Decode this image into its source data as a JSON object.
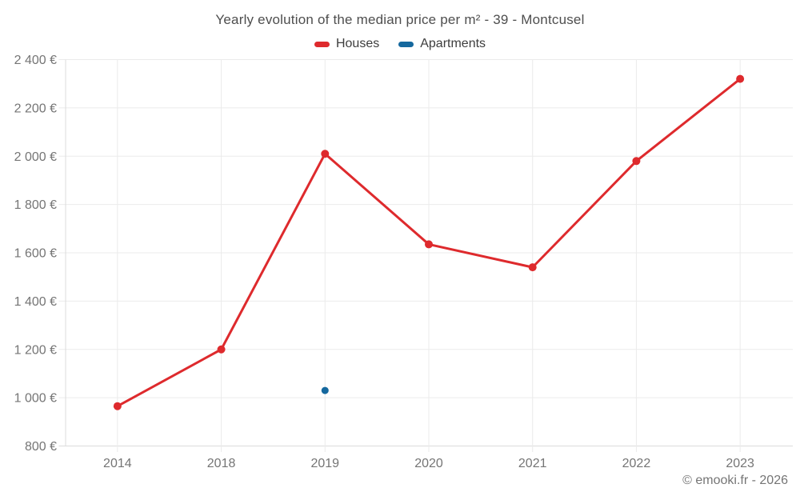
{
  "header": {
    "title": "Yearly evolution of the median price per m² - 39 - Montcusel"
  },
  "legend": {
    "items": [
      {
        "label": "Houses",
        "color": "#de2a2d"
      },
      {
        "label": "Apartments",
        "color": "#15689e"
      }
    ]
  },
  "footer": {
    "credit": "© emooki.fr - 2026"
  },
  "chart_data": {
    "type": "line",
    "title": "Yearly evolution of the median price per m² - 39 - Montcusel",
    "categories": [
      "2014",
      "2018",
      "2019",
      "2020",
      "2021",
      "2022",
      "2023"
    ],
    "series": [
      {
        "name": "Houses",
        "color": "#de2a2d",
        "point_radius": 5,
        "values": [
          965,
          1200,
          2010,
          1635,
          1540,
          1980,
          2320
        ]
      },
      {
        "name": "Apartments",
        "color": "#15689e",
        "point_radius": 4.5,
        "values": [
          null,
          null,
          1030,
          null,
          null,
          null,
          null
        ]
      }
    ],
    "xlabel": "",
    "ylabel": "",
    "ylim": [
      800,
      2400
    ],
    "ytick_step": 200,
    "ytick_suffix": "€",
    "ytick_thousands_separator": " ",
    "grid": true,
    "legend_position": "top",
    "colors": {
      "grid": "#ebebeb",
      "axis": "#dcdcdc",
      "tick_label": "#757575"
    }
  }
}
